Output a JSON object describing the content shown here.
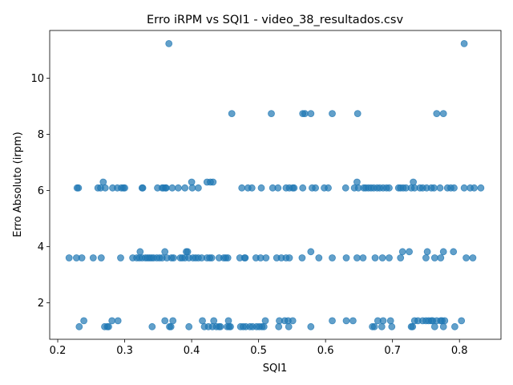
{
  "chart_data": {
    "type": "scatter",
    "title": "Erro iRPM vs SQI1 - video_38_resultados.csv",
    "xlabel": "SQI1",
    "ylabel": "Erro Absoluto (irpm)",
    "xlim": [
      0.188,
      0.862
    ],
    "ylim": [
      0.7,
      11.7
    ],
    "xticks": [
      "0.2",
      "0.3",
      "0.4",
      "0.5",
      "0.6",
      "0.7",
      "0.8"
    ],
    "yticks": [
      "2",
      "4",
      "6",
      "8",
      "10"
    ],
    "xtick_values": [
      0.2,
      0.3,
      0.4,
      0.5,
      0.6,
      0.7,
      0.8
    ],
    "ytick_values": [
      2,
      4,
      6,
      8,
      10
    ],
    "grid": false,
    "marker_color": "#1f77b4",
    "series": [
      {
        "points": [
          [
            0.366,
            11.23
          ],
          [
            0.807,
            11.23
          ],
          [
            0.46,
            8.74
          ],
          [
            0.519,
            8.74
          ],
          [
            0.566,
            8.74
          ],
          [
            0.569,
            8.74
          ],
          [
            0.578,
            8.74
          ],
          [
            0.61,
            8.74
          ],
          [
            0.648,
            8.74
          ],
          [
            0.766,
            8.74
          ],
          [
            0.776,
            8.74
          ],
          [
            0.229,
            6.09
          ],
          [
            0.231,
            6.09
          ],
          [
            0.26,
            6.09
          ],
          [
            0.264,
            6.09
          ],
          [
            0.268,
            6.3
          ],
          [
            0.271,
            6.09
          ],
          [
            0.282,
            6.09
          ],
          [
            0.289,
            6.09
          ],
          [
            0.295,
            6.09
          ],
          [
            0.298,
            6.09
          ],
          [
            0.3,
            6.09
          ],
          [
            0.326,
            6.09
          ],
          [
            0.327,
            6.09
          ],
          [
            0.349,
            6.09
          ],
          [
            0.356,
            6.09
          ],
          [
            0.358,
            6.09
          ],
          [
            0.361,
            6.09
          ],
          [
            0.362,
            6.09
          ],
          [
            0.371,
            6.09
          ],
          [
            0.38,
            6.09
          ],
          [
            0.39,
            6.09
          ],
          [
            0.4,
            6.3
          ],
          [
            0.401,
            6.09
          ],
          [
            0.41,
            6.09
          ],
          [
            0.423,
            6.3
          ],
          [
            0.428,
            6.3
          ],
          [
            0.432,
            6.3
          ],
          [
            0.475,
            6.09
          ],
          [
            0.484,
            6.09
          ],
          [
            0.49,
            6.09
          ],
          [
            0.504,
            6.09
          ],
          [
            0.521,
            6.09
          ],
          [
            0.529,
            6.09
          ],
          [
            0.541,
            6.09
          ],
          [
            0.546,
            6.09
          ],
          [
            0.551,
            6.09
          ],
          [
            0.553,
            6.09
          ],
          [
            0.566,
            6.09
          ],
          [
            0.58,
            6.09
          ],
          [
            0.585,
            6.09
          ],
          [
            0.598,
            6.09
          ],
          [
            0.604,
            6.09
          ],
          [
            0.63,
            6.09
          ],
          [
            0.643,
            6.09
          ],
          [
            0.647,
            6.3
          ],
          [
            0.649,
            6.09
          ],
          [
            0.657,
            6.09
          ],
          [
            0.66,
            6.09
          ],
          [
            0.664,
            6.09
          ],
          [
            0.668,
            6.09
          ],
          [
            0.672,
            6.09
          ],
          [
            0.677,
            6.09
          ],
          [
            0.681,
            6.09
          ],
          [
            0.686,
            6.09
          ],
          [
            0.691,
            6.09
          ],
          [
            0.695,
            6.09
          ],
          [
            0.709,
            6.09
          ],
          [
            0.712,
            6.09
          ],
          [
            0.716,
            6.09
          ],
          [
            0.72,
            6.09
          ],
          [
            0.728,
            6.09
          ],
          [
            0.731,
            6.3
          ],
          [
            0.733,
            6.09
          ],
          [
            0.741,
            6.09
          ],
          [
            0.745,
            6.09
          ],
          [
            0.751,
            6.09
          ],
          [
            0.758,
            6.09
          ],
          [
            0.762,
            6.09
          ],
          [
            0.771,
            6.09
          ],
          [
            0.782,
            6.09
          ],
          [
            0.787,
            6.09
          ],
          [
            0.792,
            6.09
          ],
          [
            0.807,
            6.09
          ],
          [
            0.816,
            6.09
          ],
          [
            0.822,
            6.09
          ],
          [
            0.832,
            6.09
          ],
          [
            0.217,
            3.6
          ],
          [
            0.228,
            3.6
          ],
          [
            0.236,
            3.6
          ],
          [
            0.253,
            3.6
          ],
          [
            0.265,
            3.6
          ],
          [
            0.294,
            3.6
          ],
          [
            0.312,
            3.6
          ],
          [
            0.318,
            3.6
          ],
          [
            0.322,
            3.6
          ],
          [
            0.323,
            3.82
          ],
          [
            0.326,
            3.6
          ],
          [
            0.331,
            3.6
          ],
          [
            0.334,
            3.6
          ],
          [
            0.337,
            3.6
          ],
          [
            0.34,
            3.6
          ],
          [
            0.343,
            3.6
          ],
          [
            0.348,
            3.6
          ],
          [
            0.352,
            3.6
          ],
          [
            0.356,
            3.6
          ],
          [
            0.36,
            3.82
          ],
          [
            0.363,
            3.6
          ],
          [
            0.37,
            3.6
          ],
          [
            0.373,
            3.6
          ],
          [
            0.383,
            3.6
          ],
          [
            0.386,
            3.6
          ],
          [
            0.39,
            3.6
          ],
          [
            0.392,
            3.82
          ],
          [
            0.394,
            3.82
          ],
          [
            0.396,
            3.6
          ],
          [
            0.402,
            3.6
          ],
          [
            0.406,
            3.6
          ],
          [
            0.41,
            3.6
          ],
          [
            0.415,
            3.6
          ],
          [
            0.423,
            3.6
          ],
          [
            0.427,
            3.6
          ],
          [
            0.43,
            3.6
          ],
          [
            0.441,
            3.6
          ],
          [
            0.448,
            3.6
          ],
          [
            0.451,
            3.6
          ],
          [
            0.454,
            3.6
          ],
          [
            0.472,
            3.6
          ],
          [
            0.479,
            3.6
          ],
          [
            0.48,
            3.6
          ],
          [
            0.496,
            3.6
          ],
          [
            0.503,
            3.6
          ],
          [
            0.511,
            3.6
          ],
          [
            0.527,
            3.6
          ],
          [
            0.534,
            3.6
          ],
          [
            0.541,
            3.6
          ],
          [
            0.546,
            3.6
          ],
          [
            0.565,
            3.6
          ],
          [
            0.578,
            3.82
          ],
          [
            0.59,
            3.6
          ],
          [
            0.61,
            3.6
          ],
          [
            0.631,
            3.6
          ],
          [
            0.647,
            3.6
          ],
          [
            0.656,
            3.6
          ],
          [
            0.674,
            3.6
          ],
          [
            0.685,
            3.6
          ],
          [
            0.695,
            3.6
          ],
          [
            0.712,
            3.6
          ],
          [
            0.715,
            3.82
          ],
          [
            0.725,
            3.82
          ],
          [
            0.75,
            3.6
          ],
          [
            0.752,
            3.82
          ],
          [
            0.763,
            3.6
          ],
          [
            0.772,
            3.6
          ],
          [
            0.776,
            3.82
          ],
          [
            0.791,
            3.82
          ],
          [
            0.81,
            3.6
          ],
          [
            0.82,
            3.6
          ],
          [
            0.232,
            1.15
          ],
          [
            0.239,
            1.36
          ],
          [
            0.27,
            1.15
          ],
          [
            0.274,
            1.15
          ],
          [
            0.276,
            1.15
          ],
          [
            0.281,
            1.36
          ],
          [
            0.29,
            1.36
          ],
          [
            0.341,
            1.15
          ],
          [
            0.36,
            1.36
          ],
          [
            0.367,
            1.15
          ],
          [
            0.369,
            1.15
          ],
          [
            0.372,
            1.36
          ],
          [
            0.396,
            1.15
          ],
          [
            0.416,
            1.36
          ],
          [
            0.419,
            1.15
          ],
          [
            0.425,
            1.15
          ],
          [
            0.431,
            1.15
          ],
          [
            0.433,
            1.36
          ],
          [
            0.437,
            1.15
          ],
          [
            0.441,
            1.15
          ],
          [
            0.443,
            1.15
          ],
          [
            0.453,
            1.15
          ],
          [
            0.455,
            1.36
          ],
          [
            0.456,
            1.15
          ],
          [
            0.458,
            1.15
          ],
          [
            0.473,
            1.15
          ],
          [
            0.477,
            1.15
          ],
          [
            0.481,
            1.15
          ],
          [
            0.487,
            1.15
          ],
          [
            0.491,
            1.15
          ],
          [
            0.497,
            1.15
          ],
          [
            0.501,
            1.15
          ],
          [
            0.505,
            1.15
          ],
          [
            0.508,
            1.15
          ],
          [
            0.51,
            1.36
          ],
          [
            0.53,
            1.15
          ],
          [
            0.531,
            1.36
          ],
          [
            0.539,
            1.36
          ],
          [
            0.544,
            1.36
          ],
          [
            0.545,
            1.15
          ],
          [
            0.551,
            1.36
          ],
          [
            0.578,
            1.15
          ],
          [
            0.61,
            1.36
          ],
          [
            0.631,
            1.36
          ],
          [
            0.641,
            1.36
          ],
          [
            0.67,
            1.15
          ],
          [
            0.673,
            1.15
          ],
          [
            0.678,
            1.36
          ],
          [
            0.684,
            1.15
          ],
          [
            0.686,
            1.36
          ],
          [
            0.697,
            1.36
          ],
          [
            0.699,
            1.15
          ],
          [
            0.728,
            1.15
          ],
          [
            0.73,
            1.15
          ],
          [
            0.733,
            1.36
          ],
          [
            0.738,
            1.36
          ],
          [
            0.745,
            1.36
          ],
          [
            0.75,
            1.36
          ],
          [
            0.754,
            1.36
          ],
          [
            0.758,
            1.36
          ],
          [
            0.76,
            1.36
          ],
          [
            0.763,
            1.15
          ],
          [
            0.766,
            1.36
          ],
          [
            0.772,
            1.36
          ],
          [
            0.774,
            1.36
          ],
          [
            0.776,
            1.15
          ],
          [
            0.778,
            1.36
          ],
          [
            0.793,
            1.15
          ],
          [
            0.803,
            1.36
          ]
        ]
      }
    ]
  }
}
